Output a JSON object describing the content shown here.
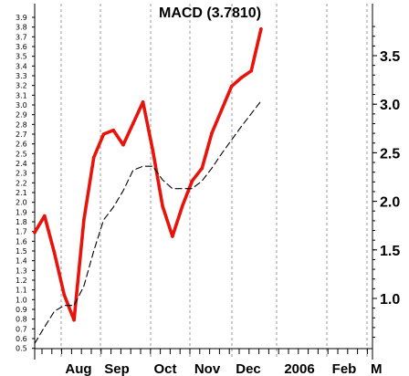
{
  "chart_data": {
    "type": "line",
    "title": "MACD (3.7810)",
    "xlabel": "",
    "ylabel": "",
    "ylim": [
      0.5,
      4.0
    ],
    "grid": "vertical dashed",
    "left_ticks": [
      "0.5",
      "0.6",
      "0.7",
      "0.8",
      "0.9",
      "1.0",
      "1.1",
      "1.2",
      "1.3",
      "1.4",
      "1.5",
      "1.6",
      "1.7",
      "1.8",
      "1.9",
      "2.0",
      "2.1",
      "2.2",
      "2.3",
      "2.4",
      "2.5",
      "2.6",
      "2.7",
      "2.8",
      "2.9",
      "3.0",
      "3.1",
      "3.2",
      "3.3",
      "3.4",
      "3.5",
      "3.6",
      "3.7",
      "3.8",
      "3.9"
    ],
    "right_ticks": [
      "1.0",
      "1.5",
      "2.0",
      "2.5",
      "3.0",
      "3.5"
    ],
    "x_labels": [
      "Aug",
      "Sep",
      "Oct",
      "Nov",
      "Dec",
      "2006",
      "Feb",
      "M"
    ],
    "series": [
      {
        "role": "macd",
        "color": "#e8140c",
        "style": "solid",
        "x": [
          0,
          1,
          2,
          3,
          4,
          5,
          6,
          7,
          8,
          9,
          10,
          11,
          12,
          13,
          14,
          15,
          16,
          17,
          18,
          19,
          20,
          21,
          22,
          23
        ],
        "values": [
          1.69,
          1.86,
          1.48,
          1.05,
          0.79,
          1.82,
          2.46,
          2.7,
          2.74,
          2.59,
          2.81,
          3.03,
          2.53,
          1.96,
          1.65,
          1.96,
          2.22,
          2.35,
          2.71,
          2.95,
          3.19,
          3.28,
          3.35,
          3.78
        ]
      },
      {
        "role": "signal",
        "color": "#000000",
        "style": "dashed",
        "x": [
          0,
          1,
          2,
          3,
          4,
          5,
          6,
          7,
          8,
          9,
          10,
          11,
          12,
          13,
          14,
          15,
          16,
          17,
          18,
          19,
          20,
          21,
          22,
          23
        ],
        "values": [
          0.55,
          0.72,
          0.88,
          0.94,
          0.94,
          1.14,
          1.5,
          1.82,
          1.95,
          2.12,
          2.33,
          2.37,
          2.37,
          2.23,
          2.14,
          2.14,
          2.14,
          2.22,
          2.35,
          2.5,
          2.64,
          2.78,
          2.91,
          3.04
        ]
      }
    ]
  }
}
